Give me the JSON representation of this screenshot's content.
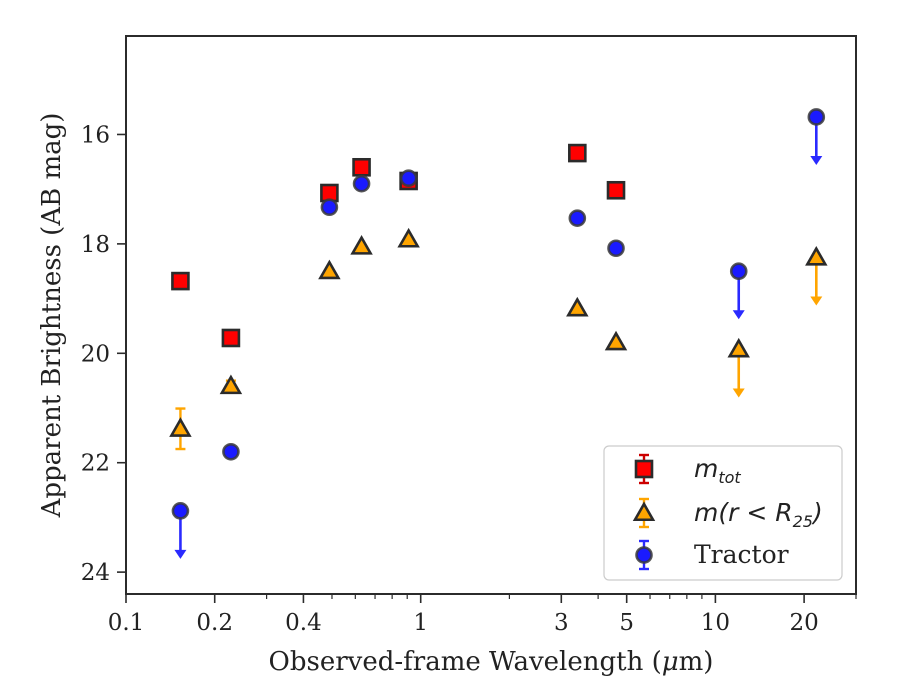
{
  "chart_data": {
    "type": "scatter",
    "xlabel_prefix": "Observed-frame Wavelength (",
    "xlabel_mu": "μ",
    "xlabel_suffix": "m)",
    "ylabel": "Apparent Brightness (AB mag)",
    "xscale": "log",
    "xlim": [
      0.1,
      30
    ],
    "ylim": [
      24.4,
      14.2
    ],
    "y_inverted": true,
    "x_ticks": [
      {
        "value": 0.1,
        "label": "0.1"
      },
      {
        "value": 0.2,
        "label": "0.2"
      },
      {
        "value": 0.4,
        "label": "0.4"
      },
      {
        "value": 1,
        "label": "1"
      },
      {
        "value": 3,
        "label": "3"
      },
      {
        "value": 5,
        "label": "5"
      },
      {
        "value": 10,
        "label": "10"
      },
      {
        "value": 20,
        "label": "20"
      }
    ],
    "y_ticks": [
      {
        "value": 16,
        "label": "16"
      },
      {
        "value": 18,
        "label": "18"
      },
      {
        "value": 20,
        "label": "20"
      },
      {
        "value": 22,
        "label": "22"
      },
      {
        "value": 24,
        "label": "24"
      }
    ],
    "legend": {
      "position": "lower-right",
      "entries": [
        {
          "series": "mtot",
          "label_main": "m",
          "label_sub": "tot"
        },
        {
          "series": "mr25",
          "label_main": "m(r < R",
          "label_sub": "25",
          "label_end": ")"
        },
        {
          "series": "tractor",
          "label_main": "Tractor"
        }
      ]
    },
    "series": [
      {
        "key": "mtot",
        "marker": "square",
        "face_color": "#ff0000",
        "edge_color": "#2b2b2b",
        "error_color": "#cc0000",
        "points": [
          {
            "x": 0.153,
            "y": 18.68
          },
          {
            "x": 0.227,
            "y": 19.72
          },
          {
            "x": 0.49,
            "y": 17.07
          },
          {
            "x": 0.63,
            "y": 16.6
          },
          {
            "x": 0.91,
            "y": 16.85
          },
          {
            "x": 3.4,
            "y": 16.34
          },
          {
            "x": 4.6,
            "y": 17.02
          }
        ]
      },
      {
        "key": "mr25",
        "marker": "triangle",
        "face_color": "#ffa500",
        "edge_color": "#2b2b2b",
        "error_color": "#ffa500",
        "points": [
          {
            "x": 0.153,
            "y": 21.38,
            "yerr": 0.37
          },
          {
            "x": 0.227,
            "y": 20.6,
            "yerr": 0.1
          },
          {
            "x": 0.49,
            "y": 18.5
          },
          {
            "x": 0.63,
            "y": 18.05
          },
          {
            "x": 0.91,
            "y": 17.92
          },
          {
            "x": 3.4,
            "y": 19.18
          },
          {
            "x": 4.6,
            "y": 19.8
          },
          {
            "x": 12,
            "y": 19.93,
            "upper_limit": true
          },
          {
            "x": 22,
            "y": 18.25,
            "upper_limit": true
          }
        ]
      },
      {
        "key": "tractor",
        "marker": "circle",
        "face_color": "#1a1aff",
        "edge_color": "#3a3a3a",
        "error_color": "#2a2aff",
        "points": [
          {
            "x": 0.153,
            "y": 22.88,
            "upper_limit": true
          },
          {
            "x": 0.227,
            "y": 21.8
          },
          {
            "x": 0.49,
            "y": 17.33
          },
          {
            "x": 0.63,
            "y": 16.9
          },
          {
            "x": 0.91,
            "y": 16.8
          },
          {
            "x": 3.4,
            "y": 17.53
          },
          {
            "x": 4.6,
            "y": 18.08
          },
          {
            "x": 12,
            "y": 18.5,
            "upper_limit": true
          },
          {
            "x": 22,
            "y": 15.68,
            "upper_limit": true
          }
        ]
      }
    ]
  }
}
